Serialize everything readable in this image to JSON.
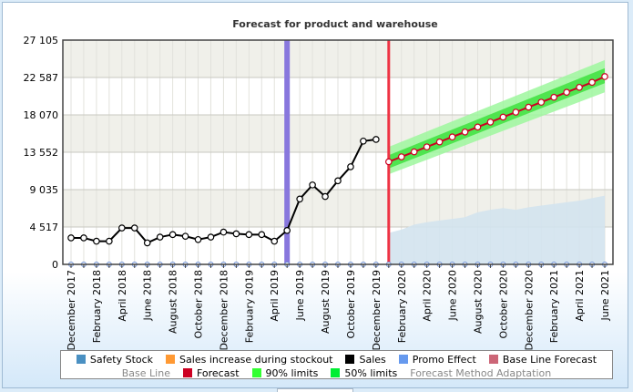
{
  "chart_data": {
    "type": "line",
    "title": "Forecast for product and warehouse",
    "xlabel": "",
    "ylabel": "",
    "ylim": [
      0,
      27105
    ],
    "y_ticks": [
      "0",
      "4 517",
      "9 035",
      "13 552",
      "18 070",
      "22 587",
      "27 105"
    ],
    "y_tick_values": [
      0,
      4517,
      9035,
      13552,
      18070,
      22587,
      27105
    ],
    "x_labels": [
      "December 2017",
      "February 2018",
      "April 2018",
      "June 2018",
      "August 2018",
      "October 2018",
      "December 2018",
      "February 2019",
      "April 2019",
      "June 2019",
      "August 2019",
      "October 2019",
      "December 2019",
      "February 2020",
      "April 2020",
      "June 2020",
      "August 2020",
      "October 2020",
      "December 2020",
      "February 2021",
      "April 2021",
      "June 2021"
    ],
    "months": [
      "2017-12",
      "2018-01",
      "2018-02",
      "2018-03",
      "2018-04",
      "2018-05",
      "2018-06",
      "2018-07",
      "2018-08",
      "2018-09",
      "2018-10",
      "2018-11",
      "2018-12",
      "2019-01",
      "2019-02",
      "2019-03",
      "2019-04",
      "2019-05",
      "2019-06",
      "2019-07",
      "2019-08",
      "2019-09",
      "2019-10",
      "2019-11",
      "2019-12",
      "2020-01",
      "2020-02",
      "2020-03",
      "2020-04",
      "2020-05",
      "2020-06",
      "2020-07",
      "2020-08",
      "2020-09",
      "2020-10",
      "2020-11",
      "2020-12",
      "2021-01",
      "2021-02",
      "2021-03",
      "2021-04",
      "2021-05",
      "2021-06"
    ],
    "series": [
      {
        "name": "Sales",
        "color": "#000000",
        "x": [
          "2017-12",
          "2018-01",
          "2018-02",
          "2018-03",
          "2018-04",
          "2018-05",
          "2018-06",
          "2018-07",
          "2018-08",
          "2018-09",
          "2018-10",
          "2018-11",
          "2018-12",
          "2019-01",
          "2019-02",
          "2019-03",
          "2019-04",
          "2019-05",
          "2019-06",
          "2019-07",
          "2019-08",
          "2019-09",
          "2019-10",
          "2019-11",
          "2019-12"
        ],
        "values": [
          3200,
          3200,
          2800,
          2800,
          4400,
          4400,
          2600,
          3300,
          3600,
          3400,
          3000,
          3300,
          3900,
          3700,
          3600,
          3600,
          2800,
          4100,
          7900,
          9600,
          8200,
          10100,
          11800,
          14900,
          15100
        ]
      },
      {
        "name": "Forecast",
        "color": "#cc0022",
        "x": [
          "2020-01",
          "2020-02",
          "2020-03",
          "2020-04",
          "2020-05",
          "2020-06",
          "2020-07",
          "2020-08",
          "2020-09",
          "2020-10",
          "2020-11",
          "2020-12",
          "2021-01",
          "2021-02",
          "2021-03",
          "2021-04",
          "2021-05",
          "2021-06"
        ],
        "values": [
          12400,
          13000,
          13600,
          14200,
          14800,
          15400,
          16000,
          16600,
          17200,
          17800,
          18400,
          19000,
          19600,
          20200,
          20800,
          21400,
          22000,
          22700
        ]
      },
      {
        "name": "90% limits",
        "color": "#33ff33",
        "x": [
          "2020-01",
          "2021-06"
        ],
        "lower": [
          10900,
          20800
        ],
        "upper": [
          14200,
          24700
        ]
      },
      {
        "name": "50% limits",
        "color": "#00ee33",
        "x": [
          "2020-01",
          "2021-06"
        ],
        "lower": [
          11600,
          21900
        ],
        "upper": [
          13200,
          23700
        ]
      },
      {
        "name": "Safety Stock",
        "color": "#d3e3ee",
        "x": [
          "2020-01",
          "2020-02",
          "2020-03",
          "2020-04",
          "2020-05",
          "2020-06",
          "2020-07",
          "2020-08",
          "2020-09",
          "2020-10",
          "2020-11",
          "2020-12",
          "2021-01",
          "2021-02",
          "2021-03",
          "2021-04",
          "2021-05",
          "2021-06"
        ],
        "values": [
          3800,
          4200,
          4800,
          5100,
          5300,
          5500,
          5700,
          6300,
          6600,
          6800,
          6600,
          6900,
          7100,
          7300,
          7500,
          7700,
          8000,
          8300
        ]
      }
    ],
    "markers": [
      {
        "name": "stockout-band",
        "x": "2019-05",
        "color": "#8877dd"
      },
      {
        "name": "forecast-start",
        "x": "2020-01",
        "color": "#ee3344"
      }
    ],
    "grid": true,
    "legend_position": "bottom"
  },
  "legend": {
    "row1": [
      {
        "label": "Safety Stock",
        "color": "#4a90c2"
      },
      {
        "label": "Sales increase during stockout",
        "color": "#ff9933"
      },
      {
        "label": "Sales",
        "color": "#000000"
      },
      {
        "label": "Promo Effect",
        "color": "#6699ee"
      },
      {
        "label": "Base Line Forecast",
        "color": "#cc6677"
      }
    ],
    "row2": [
      {
        "label": "Base Line",
        "color": ""
      },
      {
        "label": "Forecast",
        "color": "#cc0022"
      },
      {
        "label": "90% limits",
        "color": "#33ff33"
      },
      {
        "label": "50% limits",
        "color": "#00ee33"
      },
      {
        "label": "Forecast Method Adaptation",
        "color": ""
      }
    ]
  }
}
